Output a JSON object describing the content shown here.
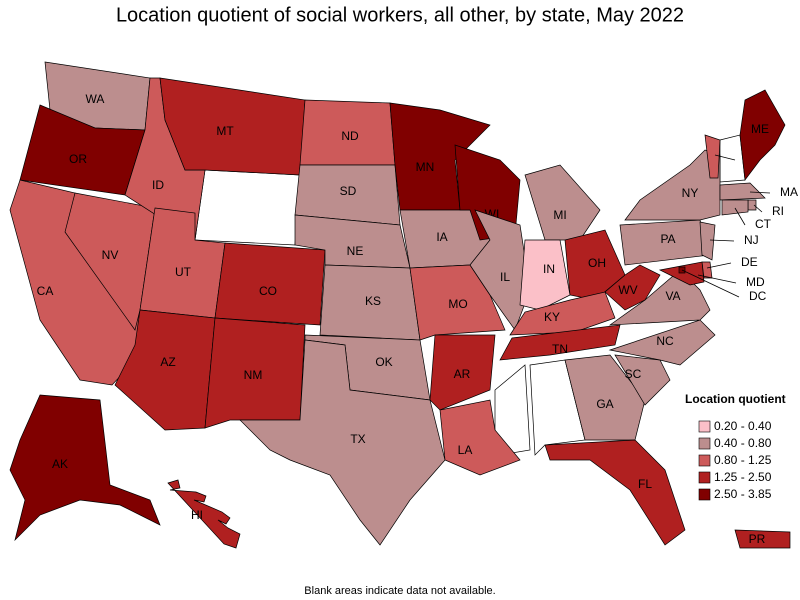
{
  "title": "Location quotient of social workers, all other, by state, May 2022",
  "note": "Blank areas indicate data not available.",
  "legend": {
    "title": "Location quotient",
    "items": [
      {
        "label": "0.20 - 0.40",
        "color": "#fbc0c8"
      },
      {
        "label": "0.40 - 0.80",
        "color": "#bc8e8e"
      },
      {
        "label": "0.80 - 1.25",
        "color": "#cd5a5a"
      },
      {
        "label": "1.25 - 2.50",
        "color": "#b02020"
      },
      {
        "label": "2.50 - 3.85",
        "color": "#800000"
      }
    ]
  },
  "states": [
    {
      "label": "WA",
      "color": "#bc8e8e"
    },
    {
      "label": "OR",
      "color": "#800000"
    },
    {
      "label": "CA",
      "color": "#cd5a5a"
    },
    {
      "label": "NV",
      "color": "#cd5a5a"
    },
    {
      "label": "ID",
      "color": "#cd5a5a"
    },
    {
      "label": "MT",
      "color": "#b02020"
    },
    {
      "label": "UT",
      "color": "#cd5a5a"
    },
    {
      "label": "CO",
      "color": "#b02020"
    },
    {
      "label": "AZ",
      "color": "#b02020"
    },
    {
      "label": "NM",
      "color": "#b02020"
    },
    {
      "label": "ND",
      "color": "#cd5a5a"
    },
    {
      "label": "SD",
      "color": "#bc8e8e"
    },
    {
      "label": "NE",
      "color": "#bc8e8e"
    },
    {
      "label": "KS",
      "color": "#bc8e8e"
    },
    {
      "label": "OK",
      "color": "#bc8e8e"
    },
    {
      "label": "TX",
      "color": "#bc8e8e"
    },
    {
      "label": "MN",
      "color": "#800000"
    },
    {
      "label": "IA",
      "color": "#bc8e8e"
    },
    {
      "label": "MO",
      "color": "#cd5a5a"
    },
    {
      "label": "AR",
      "color": "#b02020"
    },
    {
      "label": "LA",
      "color": "#cd5a5a"
    },
    {
      "label": "WI",
      "color": "#800000"
    },
    {
      "label": "IL",
      "color": "#bc8e8e"
    },
    {
      "label": "MI",
      "color": "#bc8e8e"
    },
    {
      "label": "IN",
      "color": "#fbc0c8"
    },
    {
      "label": "OH",
      "color": "#b02020"
    },
    {
      "label": "KY",
      "color": "#cd5a5a"
    },
    {
      "label": "TN",
      "color": "#b02020"
    },
    {
      "label": "GA",
      "color": "#bc8e8e"
    },
    {
      "label": "FL",
      "color": "#b02020"
    },
    {
      "label": "SC",
      "color": "#bc8e8e"
    },
    {
      "label": "NC",
      "color": "#bc8e8e"
    },
    {
      "label": "VA",
      "color": "#bc8e8e"
    },
    {
      "label": "WV",
      "color": "#b02020"
    },
    {
      "label": "PA",
      "color": "#bc8e8e"
    },
    {
      "label": "NY",
      "color": "#bc8e8e"
    },
    {
      "label": "VT",
      "color": "#cd5a5a"
    },
    {
      "label": "ME",
      "color": "#800000"
    },
    {
      "label": "MA",
      "color": "#bc8e8e"
    },
    {
      "label": "RI",
      "color": "#bc8e8e"
    },
    {
      "label": "CT",
      "color": "#bc8e8e"
    },
    {
      "label": "NJ",
      "color": "#bc8e8e"
    },
    {
      "label": "DE",
      "color": "#cd5a5a"
    },
    {
      "label": "MD",
      "color": "#b02020"
    },
    {
      "label": "DC",
      "color": "#800000"
    },
    {
      "label": "AK",
      "color": "#800000"
    },
    {
      "label": "HI",
      "color": "#b02020"
    },
    {
      "label": "PR",
      "color": "#b02020"
    }
  ]
}
